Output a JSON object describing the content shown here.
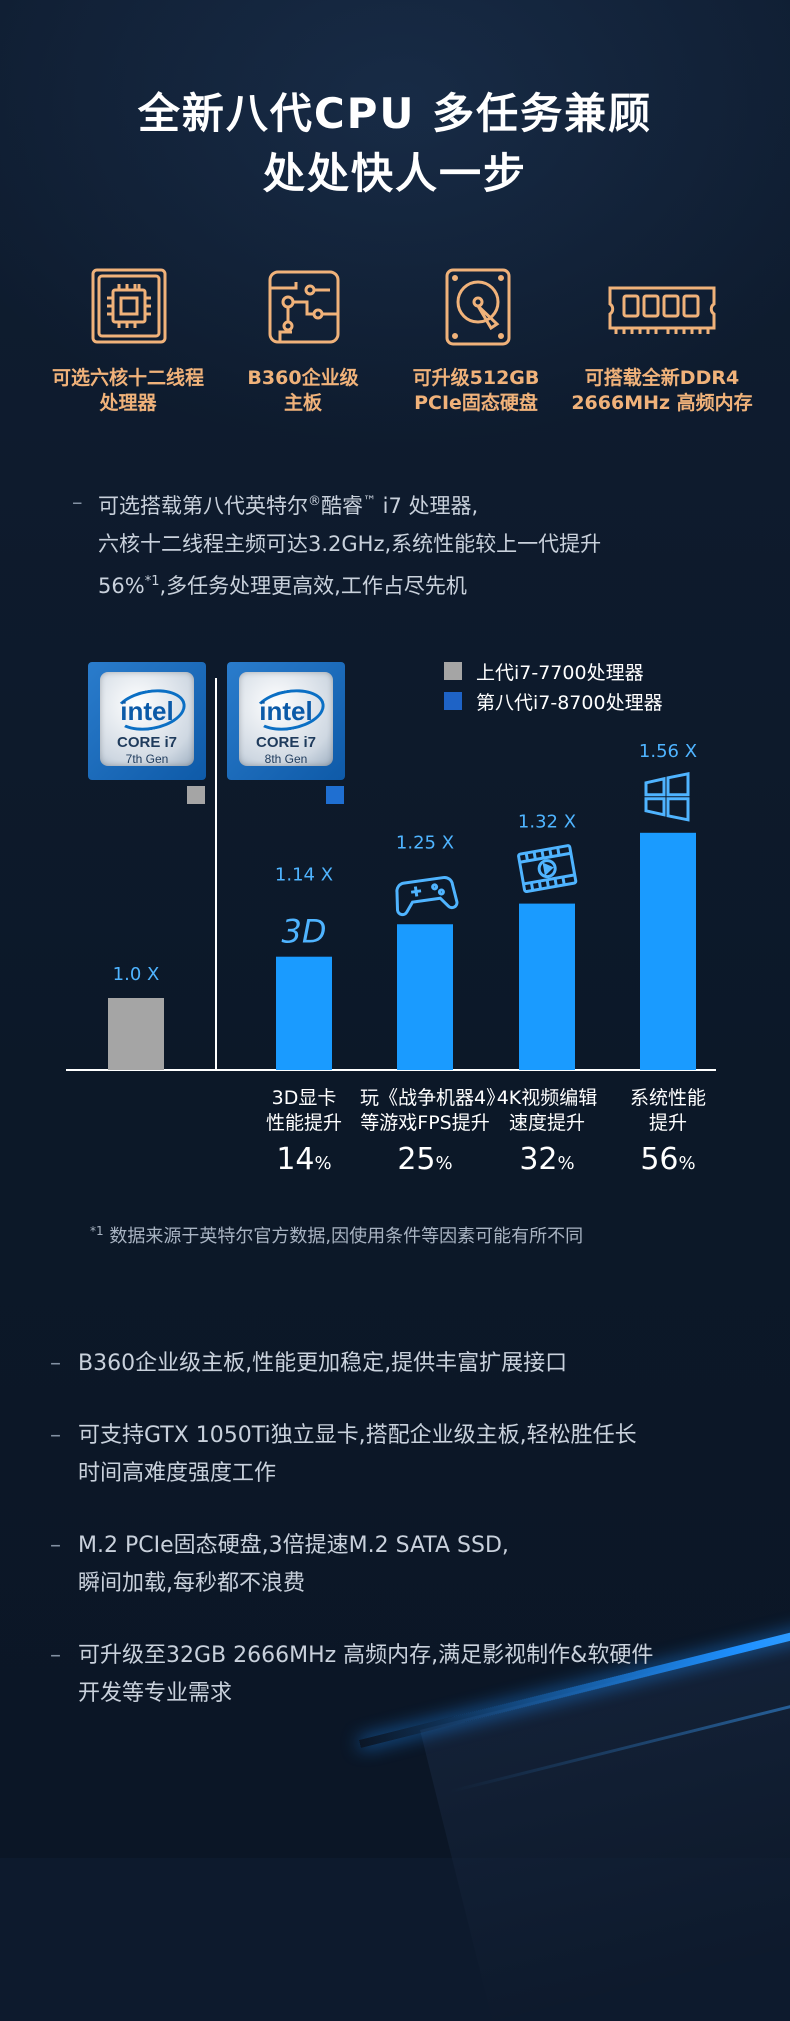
{
  "header": {
    "title_line1": "全新八代CPU 多任务兼顾",
    "title_line2": "处处快人一步"
  },
  "features": [
    {
      "icon": "cpu-chip-icon",
      "line1": "可选六核十二线程",
      "line2": "处理器"
    },
    {
      "icon": "motherboard-icon",
      "line1": "B360企业级",
      "line2": "主板"
    },
    {
      "icon": "hard-disk-icon",
      "line1": "可升级512GB",
      "line2": "PCIe固态硬盘"
    },
    {
      "icon": "memory-module-icon",
      "line1": "可搭载全新DDR4",
      "line2": "2666MHz 高频内存"
    }
  ],
  "intro": {
    "dash": "–",
    "line1_a": "可选搭载第八代英特尔",
    "reg": "®",
    "line1_b": "酷睿",
    "tm": "™",
    "line1_c": " i7 处理器,",
    "line2": "六核十二线程主频可达3.2GHz,系统性能较上一代提升",
    "line3_a": "56%",
    "line3_sup": "*1",
    "line3_b": ",多任务处理更高效,工作占尽先机"
  },
  "chips": [
    {
      "brand": "intel",
      "core": "CORE i7",
      "gen": "7th Gen",
      "color": "#a5a5a5"
    },
    {
      "brand": "intel",
      "core": "CORE i7",
      "gen": "8th Gen",
      "color": "#1f6fd1"
    }
  ],
  "legend": [
    {
      "label": "上代i7-7700处理器",
      "color": "#a5a5a5"
    },
    {
      "label": "第八代i7-8700处理器",
      "color": "#1e63c6"
    }
  ],
  "chart_data": {
    "type": "bar",
    "categories": [
      "",
      "3D显卡性能提升",
      "玩《战争机器4》等游戏FPS提升",
      "4K视频编辑速度提升",
      "系统性能提升"
    ],
    "values": [
      1.0,
      1.14,
      1.25,
      1.32,
      1.56
    ],
    "value_labels": [
      "1.0 X",
      "1.14 X",
      "1.25 X",
      "1.32 X",
      "1.56 X"
    ],
    "bar_colors": [
      "#a5a5a5",
      "#1a9bff",
      "#1a9bff",
      "#1a9bff",
      "#1a9bff"
    ],
    "icons": [
      "",
      "3d-text-icon",
      "gamepad-icon",
      "video-film-icon",
      "windows-logo-icon"
    ],
    "icon_text_3d": "3D",
    "ylim": [
      0,
      1.7
    ],
    "grid": false,
    "category_lines": [
      {
        "l1": "",
        "l2": ""
      },
      {
        "l1": "3D显卡",
        "l2": "性能提升"
      },
      {
        "l1": "玩《战争机器4》",
        "l2": "等游戏FPS提升"
      },
      {
        "l1": "4K视频编辑",
        "l2": "速度提升"
      },
      {
        "l1": "系统性能",
        "l2": "提升"
      }
    ],
    "percent_values": [
      "",
      "14",
      "25",
      "32",
      "56"
    ],
    "percent_sign": "%"
  },
  "footnote": {
    "sup": "*1",
    "text": " 数据来源于英特尔官方数据,因使用条件等因素可能有所不同"
  },
  "bullets": [
    {
      "dash": "–",
      "line1": "B360企业级主板,性能更加稳定,提供丰富扩展接口",
      "line2": ""
    },
    {
      "dash": "–",
      "line1": "可支持GTX 1050Ti独立显卡,搭配企业级主板,轻松胜任长",
      "line2": "时间高难度强度工作"
    },
    {
      "dash": "–",
      "line1": "M.2 PCIe固态硬盘,3倍提速M.2 SATA SSD,",
      "line2": "瞬间加载,每秒都不浪费"
    },
    {
      "dash": "–",
      "line1": "可升级至32GB 2666MHz 高频内存,满足影视制作&软硬件",
      "line2": "开发等专业需求"
    }
  ]
}
